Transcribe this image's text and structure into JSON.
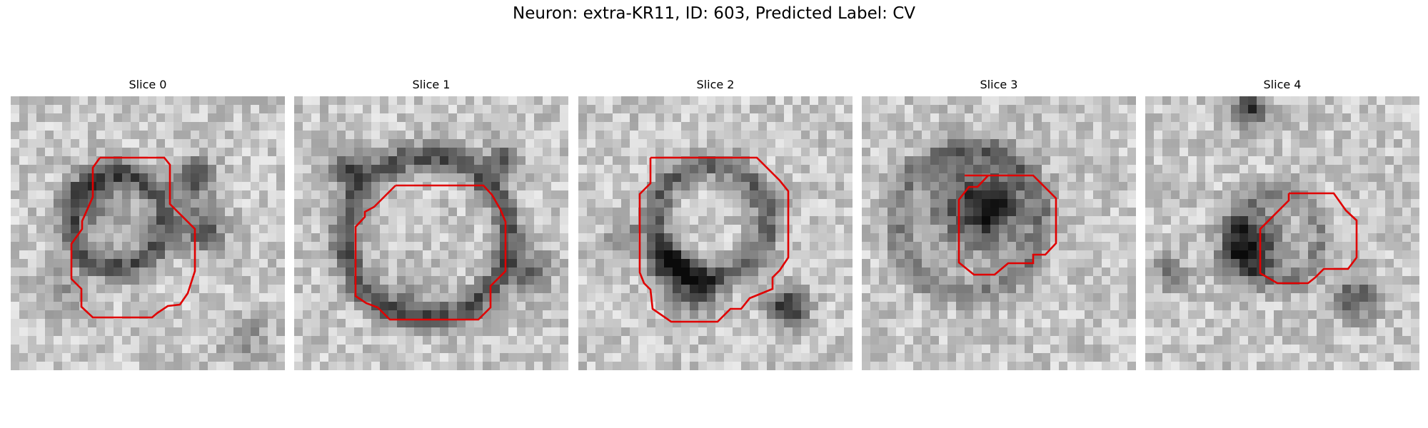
{
  "figure": {
    "title": "Neuron: extra-KR11, ID: 603, Predicted Label: CV"
  },
  "panels": [
    {
      "title": "Slice 0"
    },
    {
      "title": "Slice 1"
    },
    {
      "title": "Slice 2"
    },
    {
      "title": "Slice 3"
    },
    {
      "title": "Slice 4"
    }
  ],
  "colors": {
    "contour": "#ff0000",
    "colormap": "gray"
  }
}
